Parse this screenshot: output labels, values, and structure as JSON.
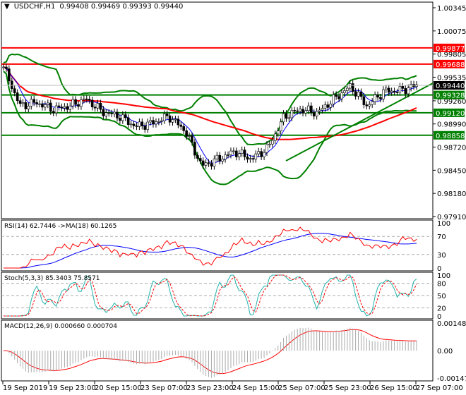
{
  "header": {
    "symbol": "USDCHF,H1",
    "ohlc": "0.99408 0.99469 0.99393 0.99440"
  },
  "chart_data": {
    "type": "candlestick",
    "symbol": "USDCHF",
    "timeframe": "H1",
    "price_ticks": [
      "1.00345",
      "1.00075",
      "0.99805",
      "0.99535",
      "0.99260",
      "0.98990",
      "0.98720",
      "0.98450",
      "0.98180",
      "0.97910"
    ],
    "ylim": [
      0.9791,
      1.00345
    ],
    "price_path": [
      0.99654,
      0.99202,
      0.9924,
      0.9916,
      0.992,
      0.9928,
      0.9913,
      0.9908,
      0.9896,
      0.99,
      0.9908,
      0.9891,
      0.985,
      0.9858,
      0.9867,
      0.9858,
      0.9871,
      0.9908,
      0.9916,
      0.9912,
      0.9928,
      0.9943,
      0.992,
      0.9937,
      0.9938,
      0.9944
    ],
    "horizontal_levels": [
      {
        "value": "0.99877",
        "color": "#ff0000"
      },
      {
        "value": "0.99688",
        "color": "#ff0000"
      },
      {
        "value": "0.99328",
        "color": "#008000"
      },
      {
        "value": "0.99120",
        "color": "#008000"
      },
      {
        "value": "0.98858",
        "color": "#008000"
      }
    ],
    "current_price": "0.99440",
    "x_labels": [
      "19 Sep 2019",
      "19 Sep 23:00",
      "20 Sep 15:00",
      "23 Sep 07:00",
      "23 Sep 23:00",
      "24 Sep 15:00",
      "25 Sep 07:00",
      "25 Sep 23:00",
      "26 Sep 15:00",
      "27 Sep 07:00"
    ],
    "indicators": {
      "rsi": {
        "label": "RSI(14) 62.7446  ->MA(18) 60.1265",
        "ticks": [
          "100",
          "70",
          "30",
          "0"
        ]
      },
      "stoch": {
        "label": "Stoch(5,3,3) 85.3403 75.8571",
        "ticks": [
          "100",
          "80",
          "50",
          "20",
          "0"
        ]
      },
      "macd": {
        "label": "MACD(12,26,9) 0.000660 0.000704",
        "ticks": [
          "0.001483",
          "0.00",
          "-0.00147"
        ]
      }
    },
    "colors": {
      "bands": "#008000",
      "ma_fast": "#0000ff",
      "ma_slow": "#ff0000",
      "stoch_main": "#20b2aa",
      "signal": "#ff0000",
      "level_red": "#ff0000",
      "level_green": "#008000"
    }
  }
}
